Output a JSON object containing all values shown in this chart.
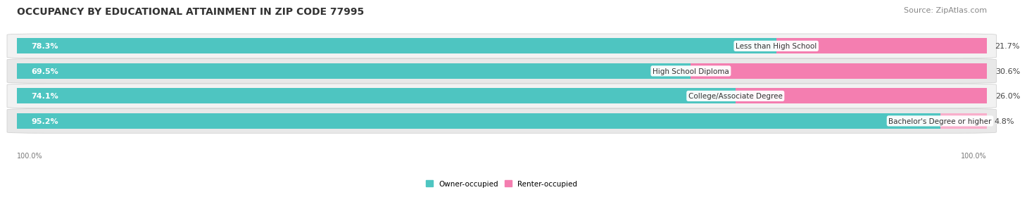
{
  "title": "OCCUPANCY BY EDUCATIONAL ATTAINMENT IN ZIP CODE 77995",
  "source": "Source: ZipAtlas.com",
  "categories": [
    "Less than High School",
    "High School Diploma",
    "College/Associate Degree",
    "Bachelor's Degree or higher"
  ],
  "owner_values": [
    78.3,
    69.5,
    74.1,
    95.2
  ],
  "renter_values": [
    21.7,
    30.6,
    26.0,
    4.8
  ],
  "owner_color": "#4EC5C1",
  "renter_color": "#F47EB0",
  "renter_color_last": "#F9AECB",
  "owner_bg_color": "#D8F0EF",
  "renter_bg_color": "#FADADF",
  "row_bg_even": "#F2F2F2",
  "row_bg_odd": "#E8E8E8",
  "title_fontsize": 10,
  "source_fontsize": 8,
  "value_fontsize": 8,
  "label_fontsize": 7.5,
  "bar_height": 0.62,
  "axis_label_left": "100.0%",
  "axis_label_right": "100.0%",
  "total": 100.0
}
